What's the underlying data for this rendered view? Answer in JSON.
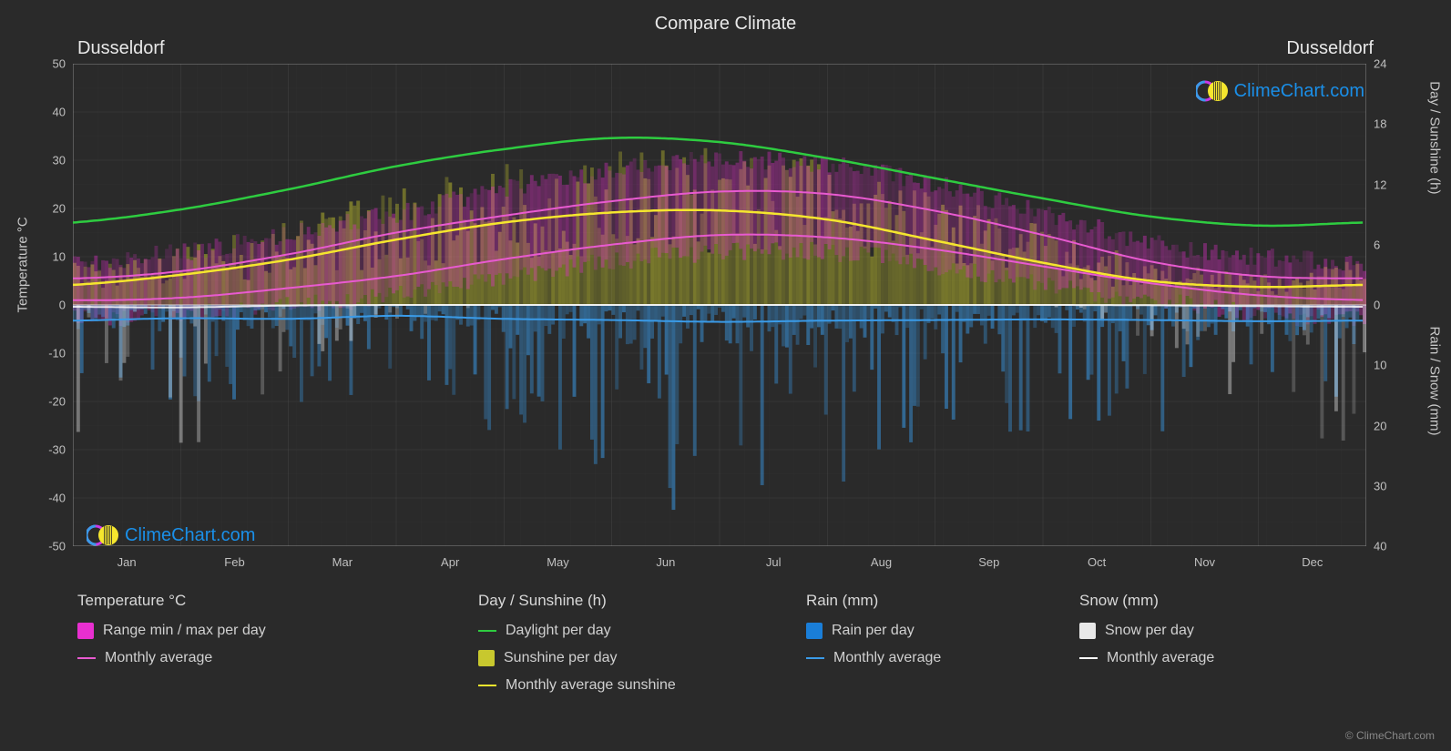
{
  "title": "Compare Climate",
  "city_left": "Dusseldorf",
  "city_right": "Dusseldorf",
  "copyright": "© ClimeChart.com",
  "watermark_text": "ClimeChart.com",
  "background_color": "#2a2a2a",
  "grid_color": "#555555",
  "grid_minor_color": "#404040",
  "axis_text_color": "#c0c0c0",
  "plot": {
    "x_months": [
      "Jan",
      "Feb",
      "Mar",
      "Apr",
      "May",
      "Jun",
      "Jul",
      "Aug",
      "Sep",
      "Oct",
      "Nov",
      "Dec"
    ],
    "temp_axis": {
      "label": "Temperature °C",
      "min": -50,
      "max": 50,
      "ticks": [
        -50,
        -40,
        -30,
        -20,
        -10,
        0,
        10,
        20,
        30,
        40,
        50
      ]
    },
    "day_axis": {
      "label": "Day / Sunshine (h)",
      "min": 0,
      "max": 24,
      "ticks": [
        0,
        6,
        12,
        18,
        24
      ]
    },
    "precip_axis": {
      "label": "Rain / Snow (mm)",
      "min": 0,
      "max": 40,
      "ticks": [
        0,
        10,
        20,
        30,
        40
      ]
    },
    "series": {
      "daylight": {
        "type": "line",
        "color": "#2ecc40",
        "width": 2.5,
        "values_h": [
          8.2,
          9.5,
          11.5,
          13.8,
          15.5,
          16.6,
          16.2,
          14.6,
          12.6,
          10.6,
          8.8,
          7.9
        ]
      },
      "sunshine_avg": {
        "type": "line",
        "color": "#f5e62e",
        "width": 2.5,
        "values_h": [
          2.0,
          3.0,
          4.5,
          6.5,
          8.2,
          9.2,
          9.4,
          8.5,
          6.4,
          4.2,
          2.4,
          1.8
        ]
      },
      "temp_max_avg": {
        "type": "line",
        "color": "#e85ad0",
        "width": 2,
        "values_c": [
          5.5,
          7.0,
          10.5,
          15.0,
          18.5,
          21.5,
          23.5,
          23.0,
          19.5,
          14.5,
          9.0,
          6.0
        ]
      },
      "temp_min_avg": {
        "type": "line",
        "color": "#e85ad0",
        "width": 2,
        "values_c": [
          1.0,
          1.5,
          3.5,
          6.0,
          9.5,
          12.5,
          14.5,
          14.0,
          11.5,
          8.0,
          4.5,
          2.0
        ]
      },
      "rain_avg": {
        "type": "line",
        "color": "#3a9be8",
        "width": 2,
        "values_mm": [
          2.6,
          2.2,
          2.3,
          1.8,
          2.3,
          2.5,
          2.8,
          2.6,
          2.5,
          2.4,
          2.5,
          2.7
        ]
      },
      "snow_avg": {
        "type": "line",
        "color": "#ffffff",
        "width": 2,
        "values_mm": [
          0.3,
          0.4,
          0.1,
          0,
          0,
          0,
          0,
          0,
          0,
          0,
          0.05,
          0.2
        ]
      },
      "temp_range_band": {
        "type": "band",
        "color": "#e82fd0",
        "opacity": 0.35,
        "low_c": [
          -3,
          -2,
          0,
          2,
          6,
          9,
          11,
          11,
          8,
          4,
          1,
          -2
        ],
        "high_c": [
          9,
          11,
          15,
          19,
          24,
          28,
          30,
          29,
          25,
          19,
          13,
          10
        ]
      },
      "sunshine_bars": {
        "type": "bars",
        "color": "#c8c82e",
        "opacity": 0.45,
        "daily_max_h": [
          3.5,
          4.5,
          6.5,
          9,
          11,
          12,
          12,
          11,
          9,
          6,
          3.5,
          2.5
        ]
      },
      "rain_bars": {
        "type": "bars_down",
        "color": "#3a9be8",
        "opacity": 0.5,
        "daily_max_mm": [
          15,
          12,
          14,
          10,
          16,
          22,
          28,
          24,
          18,
          16,
          15,
          18
        ]
      },
      "snow_bars": {
        "type": "bars_down",
        "color": "#e8e8e8",
        "opacity": 0.4,
        "daily_max_mm": [
          20,
          18,
          8,
          2,
          0,
          0,
          0,
          0,
          0,
          0,
          4,
          12
        ]
      }
    }
  },
  "legend": {
    "temperature": {
      "heading": "Temperature °C",
      "range": {
        "label": "Range min / max per day",
        "color": "#e82fd0",
        "type": "box"
      },
      "avg": {
        "label": "Monthly average",
        "color": "#e85ad0",
        "type": "line"
      }
    },
    "day_sunshine": {
      "heading": "Day / Sunshine (h)",
      "daylight": {
        "label": "Daylight per day",
        "color": "#2ecc40",
        "type": "line"
      },
      "sunshine": {
        "label": "Sunshine per day",
        "color": "#c8c82e",
        "type": "box"
      },
      "avg_sun": {
        "label": "Monthly average sunshine",
        "color": "#f5e62e",
        "type": "line"
      }
    },
    "rain": {
      "heading": "Rain (mm)",
      "per_day": {
        "label": "Rain per day",
        "color": "#1a7ed8",
        "type": "box"
      },
      "avg": {
        "label": "Monthly average",
        "color": "#3a9be8",
        "type": "line"
      }
    },
    "snow": {
      "heading": "Snow (mm)",
      "per_day": {
        "label": "Snow per day",
        "color": "#e8e8e8",
        "type": "box"
      },
      "avg": {
        "label": "Monthly average",
        "color": "#ffffff",
        "type": "line"
      }
    }
  }
}
